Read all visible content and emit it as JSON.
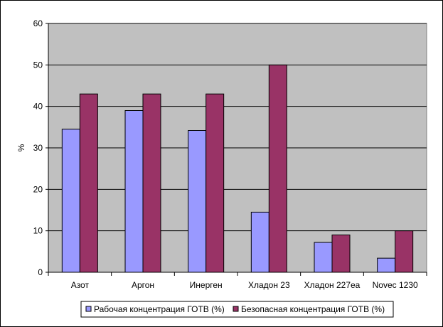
{
  "chart_data": {
    "type": "bar",
    "categories": [
      "Азот",
      "Аргон",
      "Инерген",
      "Хладон 23",
      "Хладон 227ea",
      "Novec 1230"
    ],
    "series": [
      {
        "name": "Рабочая концентрация ГОТВ (%)",
        "values": [
          34.5,
          39,
          34.2,
          14.5,
          7.2,
          3.4
        ],
        "color": "#9999ff"
      },
      {
        "name": "Безопасная концентрация ГОТВ (%)",
        "values": [
          43,
          43,
          43,
          50,
          9,
          10
        ],
        "color": "#993366"
      }
    ],
    "title": "",
    "xlabel": "",
    "ylabel": "%",
    "ylim": [
      0,
      60
    ],
    "yticks": [
      0,
      10,
      20,
      30,
      40,
      50,
      60
    ],
    "grid": true,
    "plot_background": "#c0c0c0",
    "legend_position": "bottom"
  }
}
